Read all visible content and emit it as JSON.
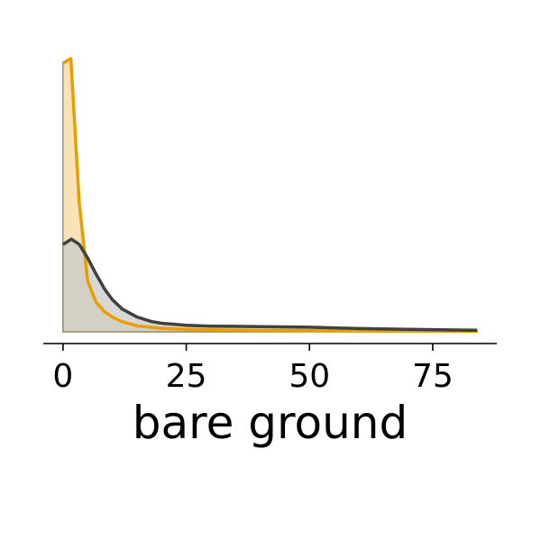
{
  "chart_data": {
    "type": "area",
    "xlabel": "bare ground",
    "ylabel": "",
    "title": "",
    "grid": false,
    "legend": "none",
    "xlim": [
      -4,
      88
    ],
    "ylim": [
      0,
      1.0
    ],
    "x_ticks": [
      0,
      25,
      50,
      75
    ],
    "x_tick_labels": [
      "0",
      "25",
      "50",
      "75"
    ],
    "series": [
      {
        "color": "#e69f00",
        "fill": "#f7ddab",
        "x": [
          0,
          1.6,
          3.3,
          5,
          6.7,
          8.4,
          10,
          12,
          15,
          20,
          25,
          30,
          40,
          50,
          60,
          70,
          84
        ],
        "y": [
          1.0,
          1.017,
          0.48,
          0.19,
          0.11,
          0.075,
          0.055,
          0.038,
          0.022,
          0.013,
          0.009,
          0.007,
          0.005,
          0.004,
          0.003,
          0.003,
          0.002
        ]
      },
      {
        "color": "#404040",
        "fill": "#c9c9c9",
        "x": [
          0,
          1.7,
          3.3,
          5,
          6.7,
          8.4,
          10,
          12,
          15,
          18,
          20,
          25,
          30,
          40,
          50,
          60,
          70,
          84
        ],
        "y": [
          0.325,
          0.345,
          0.325,
          0.275,
          0.215,
          0.16,
          0.12,
          0.085,
          0.055,
          0.038,
          0.032,
          0.024,
          0.021,
          0.019,
          0.017,
          0.012,
          0.009,
          0.006
        ]
      }
    ]
  }
}
